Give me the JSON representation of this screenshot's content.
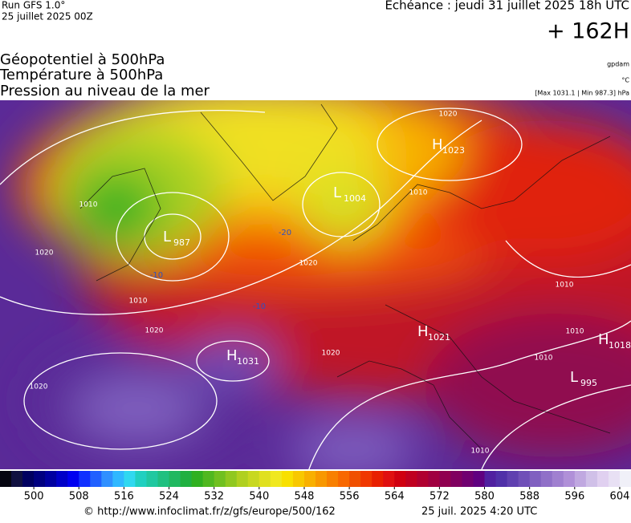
{
  "header": {
    "run": "Run GFS 1.0°",
    "date": "25 juillet 2025 00Z",
    "forecast": "Echéance : jeudi 31 juillet 2025 18h UTC",
    "lead": "+ 162H"
  },
  "titles": [
    "Géopotentiel à 500hPa",
    "Température à 500hPa",
    "Pression au niveau de la mer"
  ],
  "units": {
    "geopotential": "gpdam",
    "temperature": "°C",
    "pressure": "[Max 1031.1 | Min 987.3] hPa"
  },
  "pressure_centers": [
    {
      "letter": "H",
      "value": 1023
    },
    {
      "letter": "L",
      "value": 1004
    },
    {
      "letter": "L",
      "value": 987
    },
    {
      "letter": "H",
      "value": 1031
    },
    {
      "letter": "H",
      "value": 1021
    },
    {
      "letter": "H",
      "value": 1018
    },
    {
      "letter": "L",
      "value": 995
    }
  ],
  "isobar_labels": [
    1010,
    1020,
    1010,
    1020,
    1020,
    1020,
    1020,
    1010,
    1010,
    1010,
    1010,
    1020,
    1010
  ],
  "temperature_labels": [
    -20,
    -10,
    -10
  ],
  "colorbar": {
    "range": [
      494,
      606
    ],
    "ticks": [
      500,
      508,
      516,
      524,
      532,
      540,
      548,
      556,
      564,
      572,
      580,
      588,
      596,
      604
    ],
    "colors": [
      "#050510",
      "#101040",
      "#000060",
      "#000080",
      "#0000a0",
      "#0000c8",
      "#0000f0",
      "#1030ff",
      "#2060ff",
      "#3090ff",
      "#30b8ff",
      "#30d8f0",
      "#20d0c0",
      "#20c8a0",
      "#20c080",
      "#20b860",
      "#20b040",
      "#30b020",
      "#50b820",
      "#70c020",
      "#90c820",
      "#b0d020",
      "#c8d820",
      "#e0e020",
      "#f0e820",
      "#f8e000",
      "#f8c800",
      "#f8b000",
      "#f89800",
      "#f88000",
      "#f86800",
      "#f05000",
      "#f03800",
      "#e82000",
      "#e01010",
      "#d00010",
      "#c00020",
      "#b00030",
      "#a00040",
      "#900050",
      "#800060",
      "#700070",
      "#600080",
      "#5020a0",
      "#5030a8",
      "#6040b0",
      "#7050b8",
      "#8060c0",
      "#9070c8",
      "#a080d0",
      "#b090d8",
      "#c0a8e0",
      "#d0c0e8",
      "#e0d0f0",
      "#e8e0f4",
      "#f0f0f8"
    ]
  },
  "footer": {
    "url": "© http://www.infoclimat.fr/z/gfs/europe/500/162",
    "timestamp": "25 juil. 2025  4:20 UTC"
  }
}
